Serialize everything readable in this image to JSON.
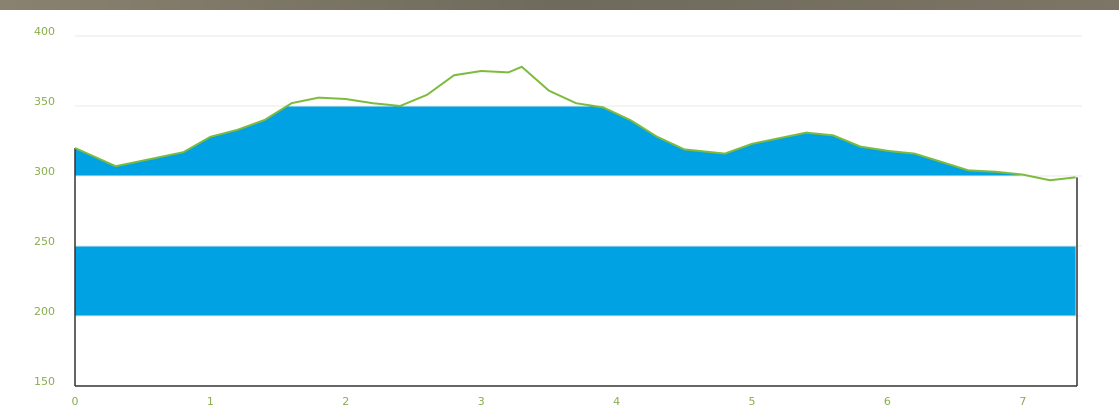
{
  "chart_data": {
    "type": "area",
    "x": [
      0,
      0.3,
      0.6,
      0.8,
      1.0,
      1.2,
      1.4,
      1.6,
      1.8,
      2.0,
      2.2,
      2.4,
      2.6,
      2.8,
      3.0,
      3.2,
      3.3,
      3.5,
      3.7,
      3.9,
      4.1,
      4.3,
      4.5,
      4.8,
      5.0,
      5.2,
      5.4,
      5.6,
      5.8,
      6.0,
      6.2,
      6.4,
      6.6,
      6.8,
      7.0,
      7.2,
      7.39
    ],
    "values": [
      320,
      307,
      313,
      317,
      328,
      333,
      340,
      352,
      356,
      355,
      352,
      350,
      358,
      372,
      375,
      374,
      378,
      361,
      352,
      349,
      340,
      328,
      319,
      316,
      323,
      327,
      331,
      329,
      321,
      318,
      316,
      310,
      304,
      303,
      301,
      297,
      299
    ],
    "color": "#7dbb3e",
    "band_color": "#00a2e3",
    "xlim": [
      0,
      7.4
    ],
    "xticks": [
      0,
      1,
      2,
      3,
      4,
      5,
      6,
      7
    ],
    "ylim": [
      150,
      400
    ],
    "yticks": [
      150,
      200,
      250,
      300,
      350,
      400
    ],
    "grid": true
  }
}
